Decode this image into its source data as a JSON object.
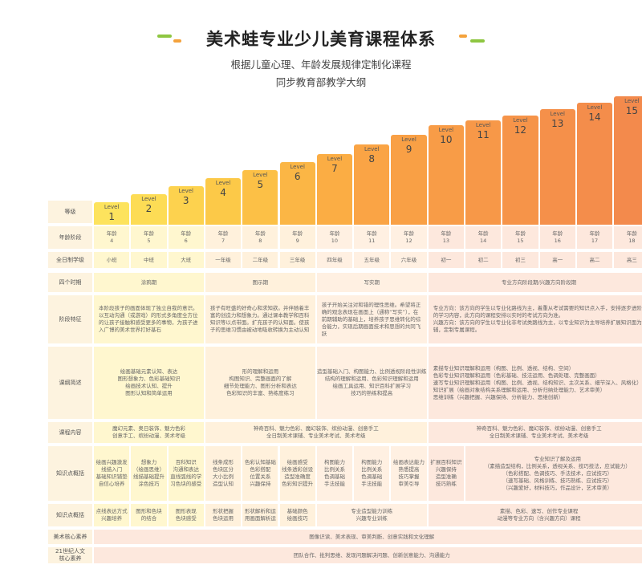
{
  "header": {
    "title": "美术蛙专业少儿美育课程体系",
    "subtitle_line1": "根据儿童心理、年龄发展规律定制化课程",
    "subtitle_line2": "同步教育部教学大纲"
  },
  "colors": {
    "accent_green": "#8ec641",
    "accent_orange": "#f4a23c",
    "yellow_light": "#fff8d2",
    "orange_light": "#fff0e0",
    "peach_light": "#fde9dc"
  },
  "row_labels": {
    "level": "等级",
    "age": "年龄阶段",
    "grade": "全日制学级",
    "period": "四个时期",
    "features": "阶段特征",
    "outline": "课纲简述",
    "content": "课程内容",
    "knowledge": "知识点概括",
    "ability": "知识点概括",
    "core_art": "美术核心素养",
    "core_21": "21世纪人文\n核心素养"
  },
  "level_word": "Level",
  "levels": [
    "1",
    "2",
    "3",
    "4",
    "5",
    "6",
    "7",
    "8",
    "9",
    "10",
    "11",
    "12",
    "13",
    "14",
    "15"
  ],
  "ages": [
    "年龄\n4",
    "年龄\n5",
    "年龄\n6",
    "年龄\n7",
    "年龄\n8",
    "年龄\n9",
    "年龄\n10",
    "年龄\n11",
    "年龄\n12",
    "年龄\n13",
    "年龄\n14",
    "年龄\n15",
    "年龄\n16",
    "年龄\n17",
    "年龄\n18"
  ],
  "grades": [
    "小班",
    "中班",
    "大班",
    "一年级",
    "二年级",
    "三年级",
    "四年级",
    "五年级",
    "六年级",
    "初一",
    "初二",
    "初三",
    "高一",
    "高二",
    "高三"
  ],
  "periods": [
    "涂鸦期",
    "图示期",
    "写实期",
    "专业方向阶段期/兴趣方向阶段期"
  ],
  "features": [
    "本阶段孩子的画面体现了独立自我的意识。以互动沟通（或游戏）的形式多角度全方位的让孩子接触和感受更多的事物，为孩子进入广博的美术世界打好基石",
    "孩子有旺盛的好奇心和求知欲。并伴随着丰富的创造力和想象力。通过课本教学和百科知识等以点带面。扩充孩子的认知面。使孩子的思维习惯由被动地吸收转换为主动认知",
    "孩子开始关注对和错的理性思维。希望将正确的观念表现在画面上（通称“写实”），在前期辅助的基础上，培养孩子思维转化的综合能力，实现后期画面技术和思想的共同飞跃",
    "专业方向：该方向的学生以专业化路线为主，着重从考试需要的知识点入手，安排逐步进阶的学习内容，此方向的课程安排以实时的考试方向为准。\n兴趣方向：该方向的学生以专业化非考试类路线为主，以专业知识为主导培养扩展知识面为辅，定制专属课程。"
  ],
  "outlines": [
    "绘画基础元素认知、表达\n图形想象力、色彩基础知识\n绘画技术认知、提升\n图形认知和简单运用",
    "形的理解和运用\n构图知识、完整画面的了解\n细节处理能力、图形分析和表达\n色彩知识的丰富、熟练度练习",
    "造型基础入门、构图能力、比例透视阶段性训练\n结构的理解和运用、色彩知识理解和运用\n绘画工具运用、知识百科扩展学习\n技巧的熟练和提高",
    "素描专业知识理解和运用（构图、比例、透视、结构、空间）\n色彩专业知识理解和运用（色彩基础、技法运用、色调处理、完整画面）\n速写专业知识理解和运用（构图、比例、透视、结构知识、主次关系、细节深入、风格化）\n知识扩展（绘画对象结构关系理解和运用、分析归纳处理能力、艺术审美）\n思维训练（兴趣把握、兴趣保持、分析能力、思维创新）"
  ],
  "contents": [
    "魔幻元素、奥日装饰、魅力色彩\n创意手工、缤纷动漫、美术考级",
    "神奇百科、魅力色彩、魔幻装饰、缤纷动漫、创意手工\n全日制美术课辅、专业美术考试、美术考级",
    "神奇百科、魅力色彩、魔幻装饰、缤纷动漫、创意手工\n全日制美术课辅、专业美术考试、美术考级"
  ],
  "knowledge": [
    "绘画兴趣激发\n线描入门\n基础知识铺垫\n自信心培养",
    "想象力\n（绘画思维）\n线描基础提升\n涂色技巧",
    "百科知识\n沟通和表达\n直线弧线的学\n习色块的感受",
    "线条成形\n色块区分\n大小比例\n造型认知",
    "色彩认知基础\n色彩搭配\n位置关系\n兴趣保持",
    "绘画感受\n线条透彩创设\n造型准确度\n色彩知识提升",
    "构图能力\n比例关系\n色调基础\n手法技能",
    "构图能力\n比例关系\n色调基础\n手法技能",
    "绘画表达能力\n熟悉提高\n技巧掌握\n审美引导",
    "扩展百科知识\n兴趣保持\n造型准确\n技巧熟练",
    "专业知识了解及运用\n（素描造型结构，比例关系，透视关系、技巧技法，应试能力）\n（色彩搭配、色调技巧、手法技术，应试技巧）\n（速写基础、风格训练、技巧熟练、应试技巧）\n（兴趣爱好，材料技巧，作品设计，艺术审美）"
  ],
  "abilities": [
    "点线表达方式\n兴趣培养",
    "图形和色块\n的结合",
    "图形表现\n色块感受",
    "形状把握\n色块运用",
    "形状解析和运\n用画面解析运",
    "基础颜色\n绘画技巧",
    "专业造型能力训练\n兴趣专业训练",
    "素描、色彩、速写、创作专业课程\n动漫等专业方向（含兴趣方向）课程"
  ],
  "core_art": "图像识读、美术表现、审美判断、创意实践和文化理解",
  "core_21": "团队合作、批判思维、发现问题解决问题、创新创意能力、沟通能力"
}
